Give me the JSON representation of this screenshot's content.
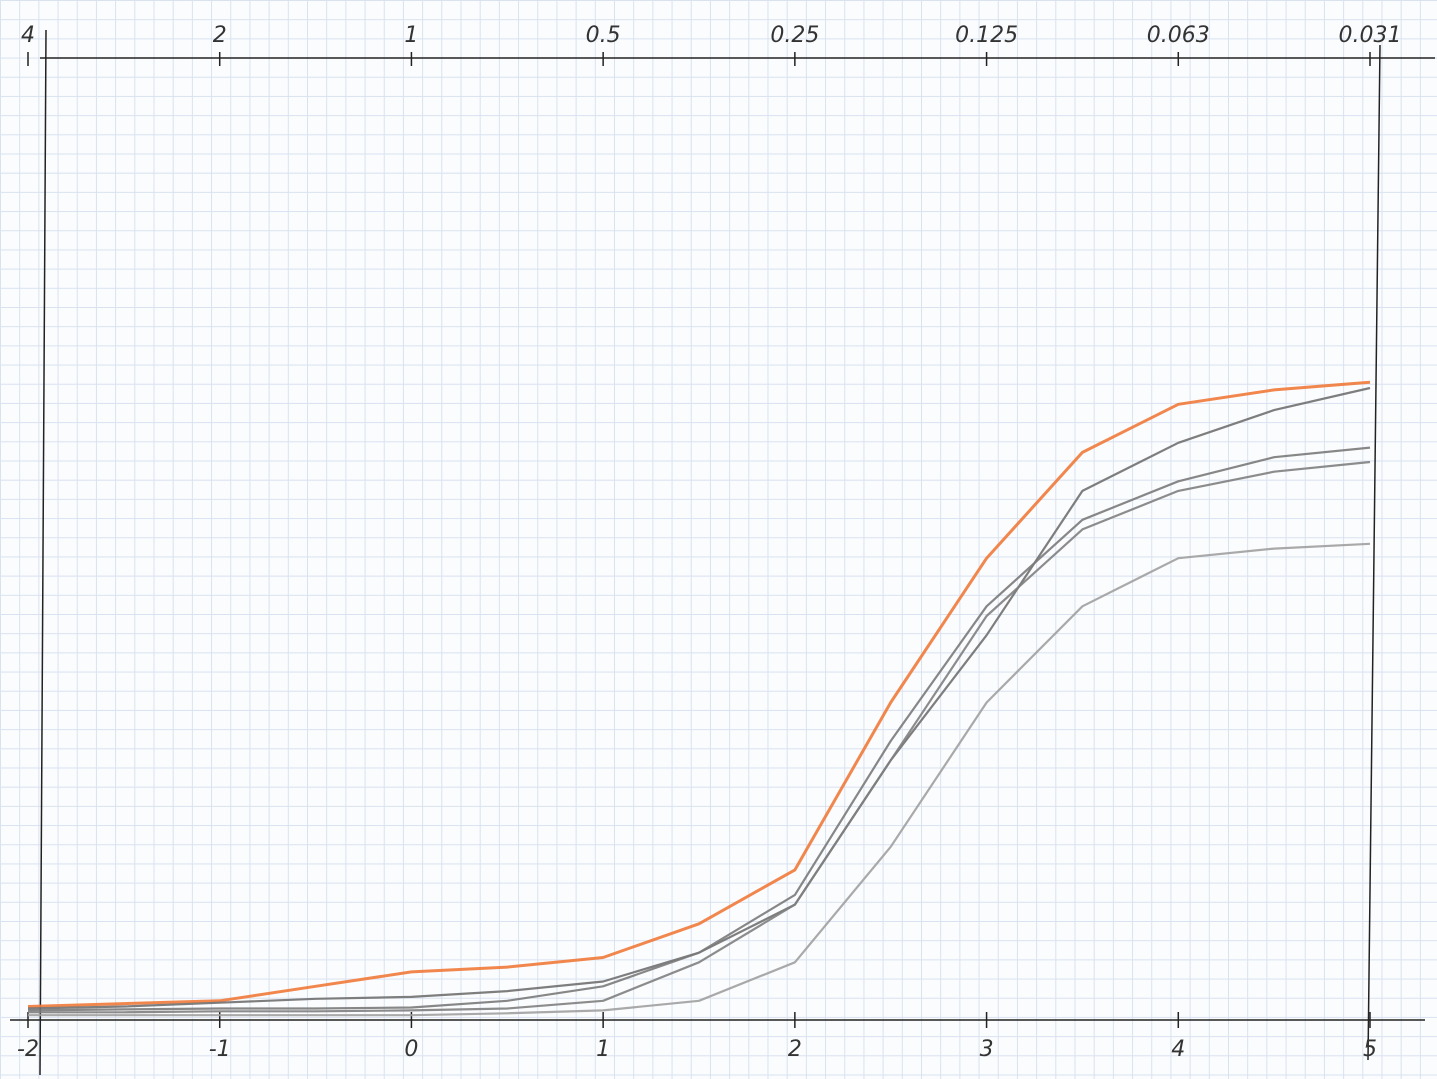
{
  "chart_data": {
    "type": "line",
    "x": [
      -2,
      -1.5,
      -1,
      -0.5,
      0,
      0.5,
      1,
      1.5,
      2,
      2.5,
      3,
      3.5,
      4,
      4.5,
      5
    ],
    "xlim": [
      -2,
      5
    ],
    "xticks": [
      -2,
      -1,
      0,
      1,
      2,
      3,
      4,
      5
    ],
    "x2lim": [
      4,
      0.03125
    ],
    "x2scale": "log",
    "x2ticks": [
      4,
      2,
      1,
      0.5,
      0.25,
      0.125,
      {
        "value": 0.0625,
        "label": "0.063"
      },
      {
        "value": 0.03125,
        "label": "0.031"
      }
    ],
    "ylim": [
      0,
      1
    ],
    "grid": true,
    "series": [
      {
        "color": "#f07a3a",
        "values": [
          0.014,
          0.017,
          0.02,
          0.035,
          0.05,
          0.055,
          0.065,
          0.1,
          0.156,
          0.33,
          0.48,
          0.59,
          0.64,
          0.655,
          0.663
        ]
      },
      {
        "color": "#707070",
        "values": [
          0.012,
          0.014,
          0.018,
          0.022,
          0.024,
          0.03,
          0.04,
          0.07,
          0.12,
          0.27,
          0.4,
          0.55,
          0.6,
          0.634,
          0.657
        ]
      },
      {
        "color": "#7a7a7a",
        "values": [
          0.01,
          0.011,
          0.012,
          0.012,
          0.013,
          0.02,
          0.035,
          0.07,
          0.13,
          0.29,
          0.43,
          0.52,
          0.56,
          0.585,
          0.595
        ]
      },
      {
        "color": "#808080",
        "values": [
          0.008,
          0.008,
          0.009,
          0.009,
          0.01,
          0.012,
          0.02,
          0.06,
          0.12,
          0.27,
          0.42,
          0.51,
          0.55,
          0.57,
          0.58
        ]
      },
      {
        "color": "#a0a0a0",
        "values": [
          0.005,
          0.005,
          0.005,
          0.005,
          0.005,
          0.007,
          0.01,
          0.02,
          0.06,
          0.18,
          0.33,
          0.43,
          0.48,
          0.49,
          0.495
        ]
      }
    ]
  }
}
